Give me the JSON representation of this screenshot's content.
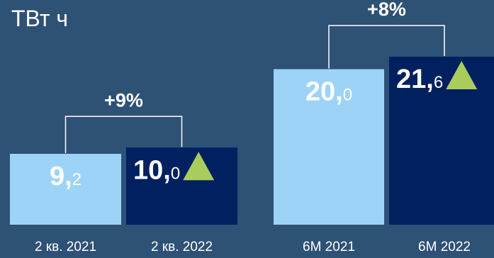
{
  "colors": {
    "background": "#2e5176",
    "bar_previous": "#9dd3f6",
    "bar_current": "#002060",
    "bracket": "#ffffff",
    "arrow": "#a9cc5c",
    "text": "#ffffff"
  },
  "chart_data": {
    "type": "bar",
    "unit_label": "ТВт ч",
    "groups": [
      {
        "change_label": "+9%",
        "bars": [
          {
            "category": "2 кв. 2021",
            "value": 9.2,
            "int_text": "9,",
            "dec_text": "2",
            "color_key": "bar_previous",
            "growth_icon": false
          },
          {
            "category": "2 кв. 2022",
            "value": 10.0,
            "int_text": "10,",
            "dec_text": "0",
            "color_key": "bar_current",
            "growth_icon": true
          }
        ]
      },
      {
        "change_label": "+8%",
        "bars": [
          {
            "category": "6М 2021",
            "value": 20.0,
            "int_text": "20,",
            "dec_text": "0",
            "color_key": "bar_previous",
            "growth_icon": false
          },
          {
            "category": "6М 2022",
            "value": 21.6,
            "int_text": "21,",
            "dec_text": "6",
            "color_key": "bar_current",
            "growth_icon": true
          }
        ]
      }
    ]
  }
}
